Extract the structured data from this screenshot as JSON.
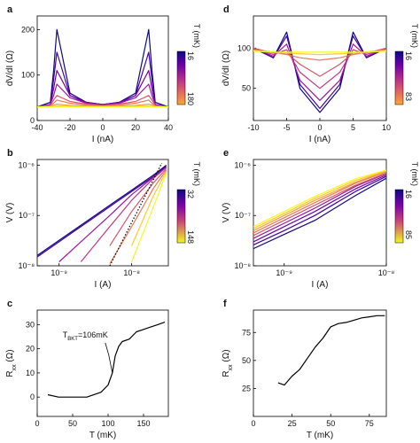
{
  "figure": {
    "panels": [
      {
        "id": "a",
        "label": "a",
        "type": "line",
        "xlabel": "I (nA)",
        "ylabel": "dV/dI (Ω)",
        "xlim": [
          -40,
          40
        ],
        "ylim": [
          0,
          230
        ],
        "xticks": [
          -40,
          -20,
          0,
          20,
          40
        ],
        "yticks": [
          0,
          100,
          200
        ],
        "colorbar": {
          "title": "T (mK)",
          "min": "16",
          "max": "180"
        }
      },
      {
        "id": "b",
        "label": "b",
        "type": "line",
        "xlabel": "I (A)",
        "ylabel": "V (V)",
        "log": true,
        "xlim": [
          5e-10,
          3.2e-08
        ],
        "ylim": [
          1e-08,
          1.3e-06
        ],
        "xticks": [
          {
            "v": 1e-09,
            "label": "10⁻⁹"
          },
          {
            "v": 1e-08,
            "label": "10⁻⁸"
          }
        ],
        "yticks": [
          {
            "v": 1e-08,
            "label": "10⁻⁸"
          },
          {
            "v": 1e-07,
            "label": "10⁻⁷"
          },
          {
            "v": 1e-06,
            "label": "10⁻⁶"
          }
        ],
        "colorbar": {
          "title": "T (mK)",
          "min": "32",
          "max": "148"
        }
      },
      {
        "id": "c",
        "label": "c",
        "type": "line",
        "xlabel": "T (mK)",
        "ylabel": "R_xx (Ω)",
        "xlim": [
          0,
          185
        ],
        "ylim": [
          -8,
          36
        ],
        "xticks": [
          0,
          50,
          100,
          150
        ],
        "yticks": [
          0,
          10,
          20,
          30
        ],
        "annotation": {
          "text": "T_BKT=106mK",
          "x": 106,
          "y": 10
        }
      },
      {
        "id": "d",
        "label": "d",
        "type": "line",
        "xlabel": "I (nA)",
        "ylabel": "dV/dI (Ω)",
        "xlim": [
          -10,
          10
        ],
        "ylim": [
          10,
          140
        ],
        "xticks": [
          -10,
          -5,
          0,
          5,
          10
        ],
        "yticks": [
          50,
          100
        ],
        "colorbar": {
          "title": "T (mK)",
          "min": "16",
          "max": "83"
        }
      },
      {
        "id": "e",
        "label": "e",
        "type": "line",
        "xlabel": "I (A)",
        "ylabel": "V (V)",
        "log": true,
        "xlim": [
          5e-10,
          1e-08
        ],
        "ylim": [
          1e-08,
          1.3e-06
        ],
        "xticks": [
          {
            "v": 1e-09,
            "label": "10⁻⁹"
          },
          {
            "v": 1e-08,
            "label": "10⁻⁸"
          }
        ],
        "yticks": [
          {
            "v": 1e-08,
            "label": "10⁻⁸"
          },
          {
            "v": 1e-07,
            "label": "10⁻⁷"
          },
          {
            "v": 1e-06,
            "label": "10⁻⁶"
          }
        ],
        "colorbar": {
          "title": "T (mK)",
          "min": "16",
          "max": "85"
        }
      },
      {
        "id": "f",
        "label": "f",
        "type": "line",
        "xlabel": "T (mK)",
        "ylabel": "R_xx (Ω)",
        "xlim": [
          0,
          86
        ],
        "ylim": [
          0,
          95
        ],
        "xticks": [
          0,
          25,
          50,
          75
        ],
        "yticks": [
          25,
          50,
          75
        ]
      }
    ]
  },
  "chart_data": [
    {
      "type": "line",
      "panel": "a",
      "color_scale": "plasma",
      "series_temperatures_mK": [
        16,
        40,
        60,
        80,
        100,
        120,
        140,
        160,
        180
      ],
      "x": [
        -40,
        -32,
        -30,
        -28,
        -20,
        -10,
        0,
        10,
        20,
        28,
        30,
        32,
        40
      ],
      "series": [
        {
          "values": [
            30,
            40,
            110,
            200,
            60,
            40,
            35,
            40,
            60,
            200,
            110,
            40,
            30
          ]
        },
        {
          "values": [
            30,
            35,
            90,
            150,
            55,
            38,
            32,
            38,
            55,
            150,
            90,
            35,
            30
          ]
        },
        {
          "values": [
            30,
            35,
            70,
            110,
            55,
            40,
            35,
            40,
            55,
            110,
            70,
            35,
            30
          ]
        },
        {
          "values": [
            30,
            35,
            55,
            80,
            50,
            38,
            34,
            38,
            50,
            80,
            55,
            35,
            30
          ]
        },
        {
          "values": [
            30,
            33,
            45,
            55,
            42,
            36,
            33,
            36,
            42,
            55,
            45,
            33,
            30
          ]
        },
        {
          "values": [
            30,
            32,
            38,
            45,
            38,
            34,
            32,
            34,
            38,
            45,
            38,
            32,
            30
          ]
        },
        {
          "values": [
            30,
            31,
            34,
            36,
            33,
            32,
            31,
            32,
            33,
            36,
            34,
            31,
            30
          ]
        },
        {
          "values": [
            30,
            30,
            31,
            32,
            31,
            30,
            30,
            30,
            31,
            32,
            31,
            30,
            30
          ]
        },
        {
          "values": [
            30,
            30,
            30,
            30,
            30,
            30,
            30,
            30,
            30,
            30,
            30,
            30,
            30
          ]
        }
      ]
    },
    {
      "type": "line",
      "panel": "b",
      "log": true,
      "color_scale": "plasma",
      "x": [
        5e-10,
        1e-09,
        2e-09,
        5e-09,
        1e-08,
        2e-08,
        3e-08
      ],
      "series": [
        {
          "values": [
            1.6e-08,
            3.2e-08,
            6.4e-08,
            1.6e-07,
            3.2e-07,
            6.4e-07,
            1e-06
          ]
        },
        {
          "values": [
            1.5e-08,
            3e-08,
            6e-08,
            1.5e-07,
            3e-07,
            6e-07,
            9.5e-07
          ]
        },
        {
          "values": [
            null,
            1.2e-08,
            3e-08,
            1e-07,
            2.6e-07,
            5.8e-07,
            9e-07
          ]
        },
        {
          "values": [
            null,
            null,
            1.2e-08,
            6e-08,
            2e-07,
            5.5e-07,
            9e-07
          ]
        },
        {
          "values": [
            null,
            null,
            null,
            2.5e-08,
            1.2e-07,
            4.5e-07,
            8.5e-07
          ]
        },
        {
          "values": [
            null,
            null,
            null,
            1.1e-08,
            6e-08,
            3.5e-07,
            8e-07
          ]
        },
        {
          "values": [
            null,
            null,
            null,
            null,
            2.5e-08,
            2.5e-07,
            7.5e-07
          ]
        },
        {
          "values": [
            null,
            null,
            null,
            null,
            1.2e-08,
            1.5e-07,
            7e-07
          ]
        }
      ],
      "reference_line": {
        "style": "dotted",
        "x": [
          5e-09,
          2.6e-08
        ],
        "y": [
          1e-08,
          1.1e-06
        ]
      }
    },
    {
      "type": "line",
      "panel": "c",
      "x": [
        15,
        30,
        50,
        70,
        90,
        100,
        106,
        110,
        115,
        120,
        130,
        140,
        150,
        160,
        170,
        180
      ],
      "values": [
        1,
        0,
        0,
        0,
        2,
        5,
        10,
        17,
        21,
        23,
        24,
        27,
        28,
        29,
        30,
        31
      ]
    },
    {
      "type": "line",
      "panel": "d",
      "color_scale": "plasma",
      "x": [
        -10,
        -7,
        -5,
        -3,
        0,
        3,
        5,
        7,
        10
      ],
      "series": [
        {
          "values": [
            100,
            88,
            120,
            50,
            20,
            50,
            120,
            88,
            100
          ]
        },
        {
          "values": [
            100,
            88,
            115,
            55,
            25,
            55,
            115,
            88,
            100
          ]
        },
        {
          "values": [
            100,
            90,
            105,
            60,
            35,
            60,
            105,
            90,
            100
          ]
        },
        {
          "values": [
            100,
            92,
            98,
            70,
            50,
            70,
            98,
            92,
            100
          ]
        },
        {
          "values": [
            100,
            94,
            94,
            80,
            65,
            80,
            94,
            94,
            100
          ]
        },
        {
          "values": [
            98,
            95,
            92,
            88,
            85,
            88,
            92,
            95,
            98
          ]
        },
        {
          "values": [
            97,
            95,
            94,
            93,
            92,
            93,
            94,
            95,
            97
          ]
        },
        {
          "values": [
            96,
            95,
            95,
            95,
            95,
            95,
            95,
            95,
            96
          ]
        }
      ]
    },
    {
      "type": "line",
      "panel": "e",
      "log": true,
      "color_scale": "plasma",
      "x": [
        5e-10,
        1e-09,
        2e-09,
        5e-09,
        1e-08
      ],
      "series": [
        {
          "values": [
            2.2e-08,
            4.2e-08,
            8e-08,
            2.5e-07,
            5.5e-07
          ]
        },
        {
          "values": [
            2.6e-08,
            5e-08,
            1e-07,
            3e-07,
            6e-07
          ]
        },
        {
          "values": [
            3e-08,
            6e-08,
            1.2e-07,
            3.4e-07,
            6.4e-07
          ]
        },
        {
          "values": [
            3.5e-08,
            7e-08,
            1.4e-07,
            3.8e-07,
            6.8e-07
          ]
        },
        {
          "values": [
            4e-08,
            8e-08,
            1.6e-07,
            4e-07,
            7e-07
          ]
        },
        {
          "values": [
            4.5e-08,
            9e-08,
            1.8e-07,
            4.4e-07,
            7.4e-07
          ]
        },
        {
          "values": [
            5e-08,
            1e-07,
            2e-07,
            4.6e-07,
            7.6e-07
          ]
        },
        {
          "values": [
            5.5e-08,
            1.1e-07,
            2.2e-07,
            5e-07,
            7.8e-07
          ]
        },
        {
          "values": [
            6e-08,
            1.2e-07,
            2.4e-07,
            5.4e-07,
            8e-07
          ]
        }
      ]
    },
    {
      "type": "line",
      "panel": "f",
      "x": [
        16,
        20,
        25,
        30,
        35,
        40,
        45,
        50,
        55,
        60,
        65,
        70,
        75,
        80,
        85
      ],
      "values": [
        30,
        28,
        36,
        42,
        52,
        62,
        70,
        80,
        83,
        84,
        86,
        88,
        89,
        90,
        90
      ]
    }
  ]
}
